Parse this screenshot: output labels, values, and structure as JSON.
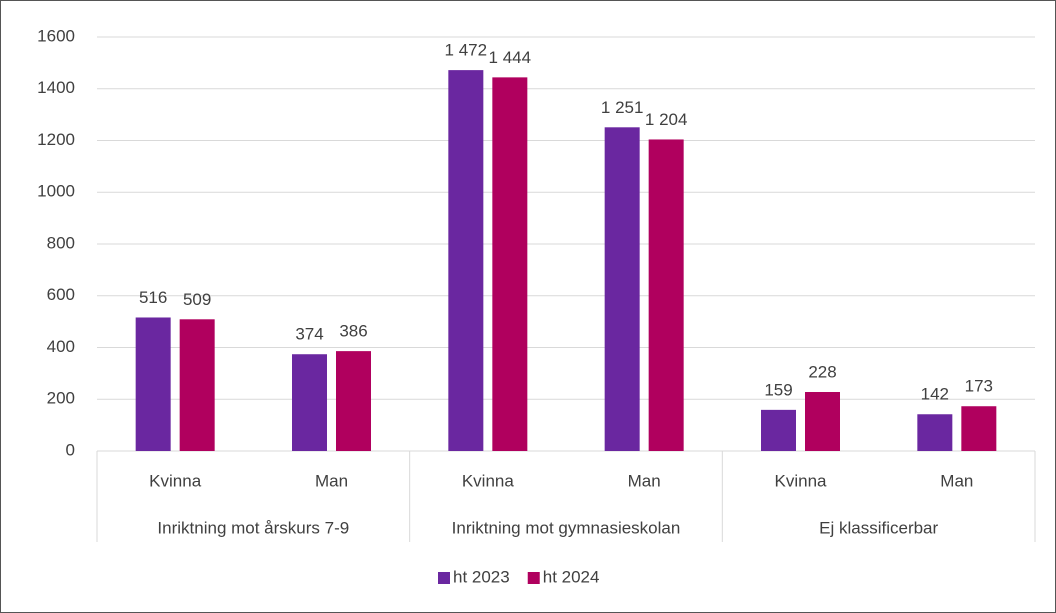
{
  "chart_data": {
    "type": "bar",
    "categories": [
      "Kvinna",
      "Man",
      "Kvinna",
      "Man",
      "Kvinna",
      "Man"
    ],
    "groups": [
      "Inriktning mot årskurs 7-9",
      "Inriktning mot gymnasieskolan",
      "Ej klassificerbar"
    ],
    "series": [
      {
        "name": "ht 2023",
        "color": "#6a27a0",
        "values": [
          516,
          374,
          1472,
          1251,
          159,
          142
        ],
        "value_labels": [
          "516",
          "374",
          "1 472",
          "1 251",
          "159",
          "142"
        ]
      },
      {
        "name": "ht 2024",
        "color": "#b0005e",
        "values": [
          509,
          386,
          1444,
          1204,
          228,
          173
        ],
        "value_labels": [
          "509",
          "386",
          "1 444",
          "1 204",
          "228",
          "173"
        ]
      }
    ],
    "ylim": [
      0,
      1600
    ],
    "yticks": [
      0,
      200,
      400,
      600,
      800,
      1000,
      1200,
      1400,
      1600
    ],
    "grid": true,
    "legend": "bottom"
  }
}
